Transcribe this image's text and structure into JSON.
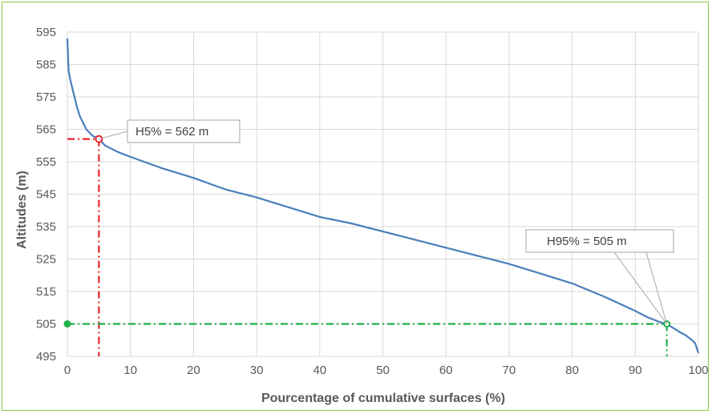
{
  "chart_data": {
    "type": "line",
    "title": "",
    "xlabel": "Pourcentage of cumulative surfaces (%)",
    "ylabel": "Altitudes (m)",
    "xlim": [
      0,
      100
    ],
    "ylim": [
      495,
      595
    ],
    "x_ticks": [
      0,
      10,
      20,
      30,
      40,
      50,
      60,
      70,
      80,
      90,
      100
    ],
    "y_ticks": [
      495,
      505,
      515,
      525,
      535,
      545,
      555,
      565,
      575,
      585,
      595
    ],
    "grid": true,
    "legend": "none",
    "series": [
      {
        "color": "#4a7ebb",
        "x": [
          0,
          0.2,
          0.5,
          1,
          1.5,
          2,
          2.5,
          3,
          3.5,
          4,
          5,
          6,
          8,
          10,
          15,
          20,
          25,
          30,
          35,
          40,
          45,
          50,
          55,
          60,
          65,
          70,
          75,
          80,
          85,
          90,
          92,
          94,
          95,
          96,
          97,
          98,
          99,
          99.5,
          100
        ],
        "y": [
          593,
          583,
          580,
          576,
          572,
          569,
          567,
          565,
          564,
          563,
          562,
          560,
          558,
          556.5,
          553,
          550,
          546.5,
          544,
          541,
          538,
          536,
          533.5,
          531,
          528.5,
          526,
          523.5,
          520.5,
          517.5,
          513.5,
          509,
          507,
          505.5,
          505,
          503.8,
          502.5,
          501.5,
          500,
          499,
          496
        ]
      }
    ],
    "markers": [
      {
        "x": 5,
        "y": 562,
        "color": "#e8262d",
        "style": "dash-dot",
        "label": "H5% = 562 m"
      },
      {
        "x": 95,
        "y": 505,
        "color": "#1fb14b",
        "style": "dash-dot",
        "label": "H95% = 505 m"
      }
    ],
    "colors": {
      "frame_border": "#8cc63f",
      "grid": "#d9d9d9",
      "series": "#4a7ebb",
      "h5": "#e8262d",
      "h95": "#1fb14b"
    }
  }
}
